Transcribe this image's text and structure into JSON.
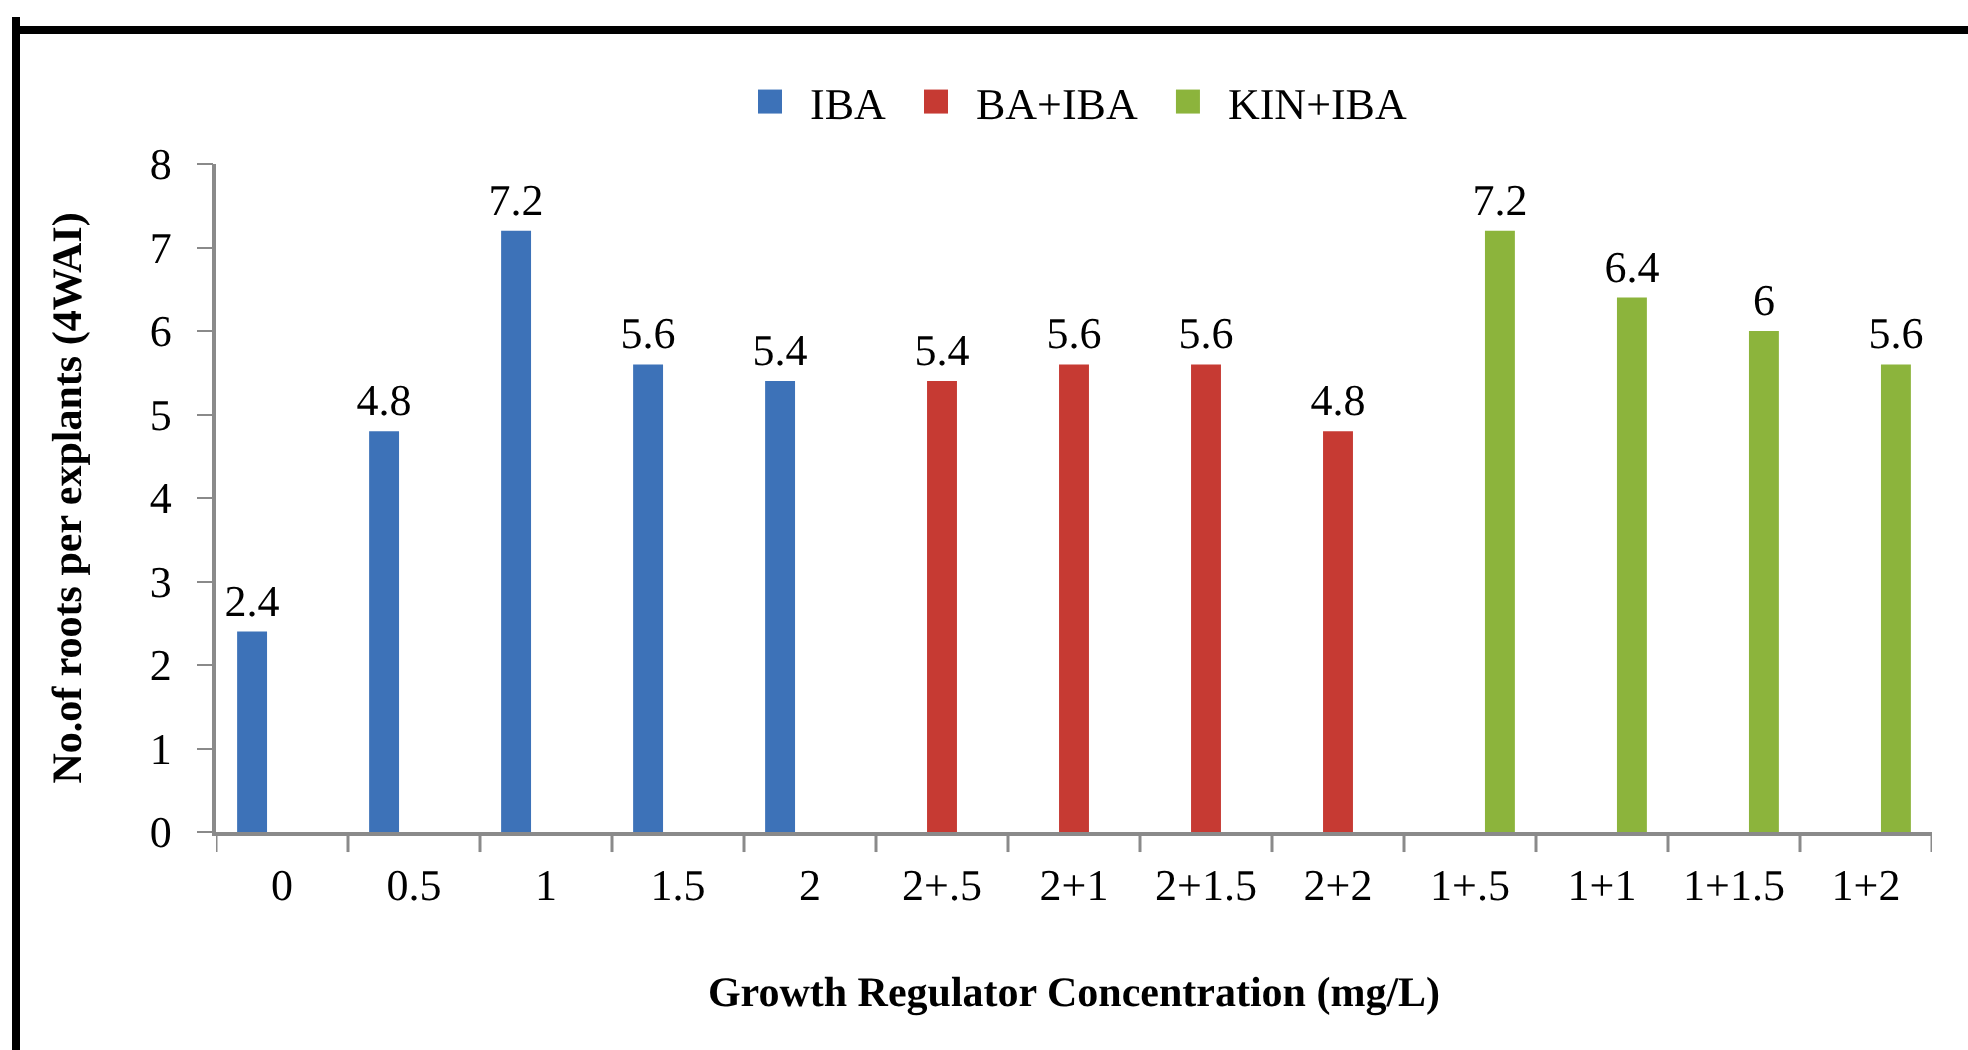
{
  "chart_data": {
    "type": "bar",
    "xlabel": "Growth Regulator Concentration (mg/L)",
    "ylabel": "No.of roots per explants (4WAI)",
    "categories": [
      "0",
      "0.5",
      "1",
      "1.5",
      "2",
      "2+.5",
      "2+1",
      "2+1.5",
      "2+2",
      "1+.5",
      "1+1",
      "1+1.5",
      "1+2"
    ],
    "series": [
      {
        "name": "IBA",
        "color": "#3d72b8",
        "values": [
          2.4,
          4.8,
          7.2,
          5.6,
          5.4,
          null,
          null,
          null,
          null,
          null,
          null,
          null,
          null
        ]
      },
      {
        "name": "BA+IBA",
        "color": "#c63a33",
        "values": [
          null,
          null,
          null,
          null,
          null,
          5.4,
          5.6,
          5.6,
          4.8,
          null,
          null,
          null,
          null
        ]
      },
      {
        "name": "KIN+IBA",
        "color": "#8cb43c",
        "values": [
          null,
          null,
          null,
          null,
          null,
          null,
          null,
          null,
          null,
          7.2,
          6.4,
          6,
          5.6
        ]
      }
    ],
    "ylim": [
      0,
      8
    ],
    "yticks": [
      0,
      1,
      2,
      3,
      4,
      5,
      6,
      7,
      8
    ],
    "data_labels": true,
    "legend": "top"
  }
}
